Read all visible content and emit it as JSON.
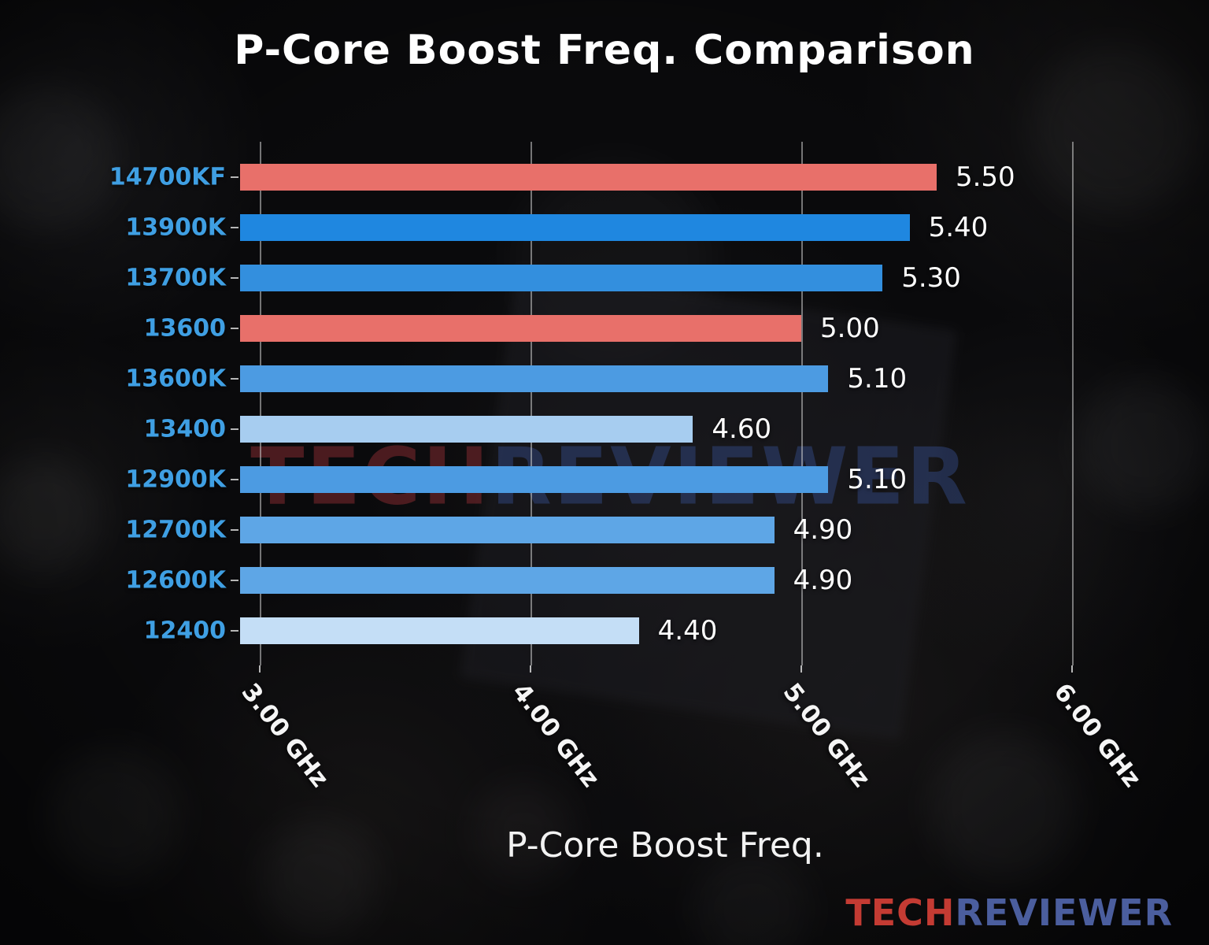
{
  "watermark": {
    "left": "TECH",
    "right": "REVIEWER"
  },
  "logo": {
    "left": "TECH",
    "right": "REVIEWER"
  },
  "chart_data": {
    "type": "bar",
    "orientation": "horizontal",
    "title": "P-Core Boost Freq. Comparison",
    "xlabel": "P-Core Boost Freq.",
    "categories": [
      "14700KF",
      "13900K",
      "13700K",
      "13600",
      "13600K",
      "13400",
      "12900K",
      "12700K",
      "12600K",
      "12400"
    ],
    "values": [
      5.5,
      5.4,
      5.3,
      5.0,
      5.1,
      4.6,
      5.1,
      4.9,
      4.9,
      4.4
    ],
    "value_labels": [
      "5.50",
      "5.40",
      "5.30",
      "5.00",
      "5.10",
      "4.60",
      "5.10",
      "4.90",
      "4.90",
      "4.40"
    ],
    "bar_colors": [
      "#e8706a",
      "#1f87e0",
      "#338fde",
      "#e8706a",
      "#4c9be2",
      "#a7cdf0",
      "#4c9be2",
      "#5ea6e6",
      "#5ea6e6",
      "#c4def6"
    ],
    "highlight_color": "#e8706a",
    "category_label_color": "#3f9fe3",
    "value_label_color": "#ffffff",
    "xlim": [
      2.927,
      6.067
    ],
    "x_ticks": [
      {
        "value": 3,
        "label": "3.00 GHz"
      },
      {
        "value": 4,
        "label": "4.00 GHz"
      },
      {
        "value": 5,
        "label": "5.00 GHz"
      },
      {
        "value": 6,
        "label": "6.00 GHz"
      }
    ],
    "grid": true,
    "legend": false
  }
}
